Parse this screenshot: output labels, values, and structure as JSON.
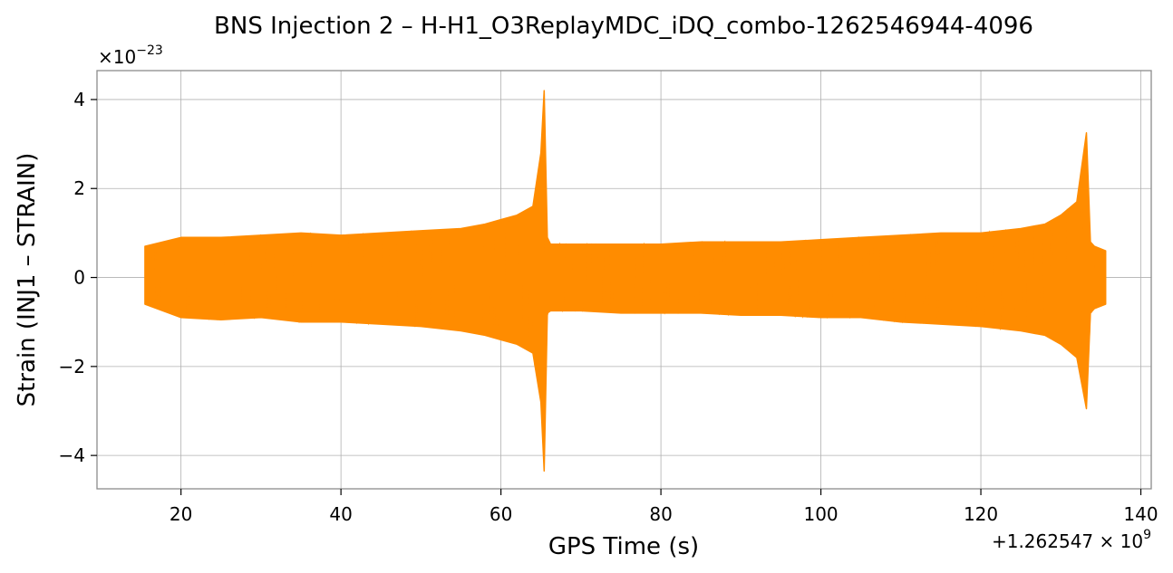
{
  "chart_data": {
    "type": "line",
    "title": "BNS Injection 2 – H-H1_O3ReplayMDC_iDQ_combo-1262546944-4096",
    "xlabel": "GPS Time (s)",
    "ylabel": "Strain (INJ1 – STRAIN)",
    "x_offset_label": "+1.262547 × 10",
    "x_offset_exponent": "9",
    "y_scale_label": "×10",
    "y_scale_exponent": "−23",
    "xlim": [
      9.5,
      141.3
    ],
    "ylim": [
      -4.75,
      4.65
    ],
    "x_ticks": [
      20,
      40,
      60,
      80,
      100,
      120,
      140
    ],
    "x_tick_labels": [
      "20",
      "40",
      "60",
      "80",
      "100",
      "120",
      "140"
    ],
    "y_ticks": [
      -4,
      -2,
      0,
      2,
      4
    ],
    "y_tick_labels": [
      "−4",
      "−2",
      "0",
      "2",
      "4"
    ],
    "grid": true,
    "legend": "none",
    "series": [
      {
        "color": "#ff8c00",
        "x": [
          15.5,
          20,
          25,
          30,
          35,
          40,
          45,
          50,
          55,
          58,
          60,
          62,
          64,
          65,
          65.4,
          65.8,
          66.2,
          70,
          75,
          80,
          85,
          90,
          95,
          100,
          105,
          110,
          115,
          120,
          125,
          128,
          130,
          132,
          133.2,
          133.7,
          134.2,
          135.6
        ],
        "upper": [
          0.7,
          0.9,
          0.9,
          0.95,
          1.0,
          0.95,
          1.0,
          1.05,
          1.1,
          1.2,
          1.3,
          1.4,
          1.6,
          2.8,
          4.2,
          0.9,
          0.75,
          0.75,
          0.75,
          0.75,
          0.8,
          0.8,
          0.8,
          0.85,
          0.9,
          0.95,
          1.0,
          1.0,
          1.1,
          1.2,
          1.4,
          1.7,
          3.25,
          0.8,
          0.7,
          0.6
        ],
        "lower": [
          -0.6,
          -0.9,
          -0.95,
          -0.9,
          -1.0,
          -1.0,
          -1.05,
          -1.1,
          -1.2,
          -1.3,
          -1.4,
          -1.5,
          -1.7,
          -2.8,
          -4.35,
          -0.8,
          -0.75,
          -0.75,
          -0.8,
          -0.8,
          -0.8,
          -0.85,
          -0.85,
          -0.9,
          -0.9,
          -1.0,
          -1.05,
          -1.1,
          -1.2,
          -1.3,
          -1.5,
          -1.8,
          -2.95,
          -0.8,
          -0.7,
          -0.6
        ]
      }
    ]
  }
}
